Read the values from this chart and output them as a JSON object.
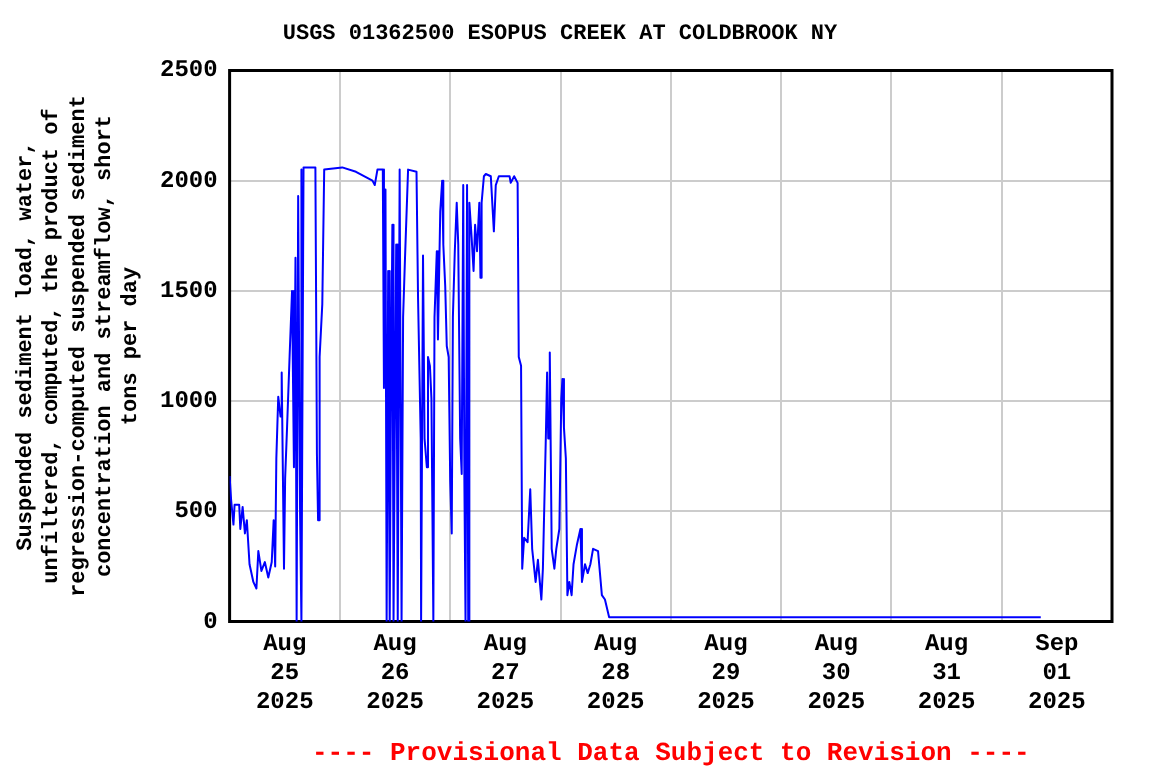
{
  "chart_data": {
    "type": "line",
    "title": "USGS 01362500 ESOPUS CREEK AT COLDBROOK NY",
    "ylabel": "Suspended sediment load, water, unfiltered, computed, the product of regression-computed suspended sediment concentration and streamflow, short tons per day",
    "annotations": [
      "---- Provisional Data Subject to Revision ----"
    ],
    "x": [
      "2025-08-25T00:00",
      "2025-08-25T00:20",
      "2025-08-25T00:50",
      "2025-08-25T01:05",
      "2025-08-25T02:05",
      "2025-08-25T02:20",
      "2025-08-25T02:50",
      "2025-08-25T03:20",
      "2025-08-25T03:45",
      "2025-08-25T04:20",
      "2025-08-25T05:10",
      "2025-08-25T05:50",
      "2025-08-25T06:15",
      "2025-08-25T06:55",
      "2025-08-25T07:40",
      "2025-08-25T08:25",
      "2025-08-25T09:10",
      "2025-08-25T09:35",
      "2025-08-25T09:55",
      "2025-08-25T10:10",
      "2025-08-25T10:35",
      "2025-08-25T11:05",
      "2025-08-25T11:20",
      "2025-08-25T11:50",
      "2025-08-25T12:05",
      "2025-08-25T12:30",
      "2025-08-25T13:05",
      "2025-08-25T13:35",
      "2025-08-25T14:00",
      "2025-08-25T14:20",
      "2025-08-25T14:35",
      "2025-08-25T14:55",
      "2025-08-25T15:20",
      "2025-08-25T15:30",
      "2025-08-25T15:45",
      "2025-08-25T16:05",
      "2025-08-25T18:40",
      "2025-08-25T19:00",
      "2025-08-25T19:15",
      "2025-08-25T19:35",
      "2025-08-25T20:10",
      "2025-08-25T20:35",
      "2025-08-26T00:30",
      "2025-08-26T03:30",
      "2025-08-26T07:05",
      "2025-08-26T07:35",
      "2025-08-26T08:10",
      "2025-08-26T09:20",
      "2025-08-26T09:35",
      "2025-08-26T09:55",
      "2025-08-26T10:10",
      "2025-08-26T10:30",
      "2025-08-26T10:50",
      "2025-08-26T11:05",
      "2025-08-26T11:25",
      "2025-08-26T11:40",
      "2025-08-26T11:55",
      "2025-08-26T12:15",
      "2025-08-26T12:35",
      "2025-08-26T13:00",
      "2025-08-26T13:25",
      "2025-08-26T13:45",
      "2025-08-26T14:10",
      "2025-08-26T14:50",
      "2025-08-26T16:40",
      "2025-08-26T17:00",
      "2025-08-26T17:35",
      "2025-08-26T17:40",
      "2025-08-26T18:05",
      "2025-08-26T18:25",
      "2025-08-26T18:55",
      "2025-08-26T19:10",
      "2025-08-26T19:35",
      "2025-08-26T19:55",
      "2025-08-26T20:20",
      "2025-08-26T20:35",
      "2025-08-26T21:05",
      "2025-08-26T21:20",
      "2025-08-26T21:50",
      "2025-08-26T22:15",
      "2025-08-26T22:30",
      "2025-08-26T22:55",
      "2025-08-26T23:15",
      "2025-08-26T23:40",
      "2025-08-27T00:00",
      "2025-08-27T00:20",
      "2025-08-27T00:35",
      "2025-08-27T01:00",
      "2025-08-27T01:25",
      "2025-08-27T01:45",
      "2025-08-27T02:10",
      "2025-08-27T02:30",
      "2025-08-27T02:50",
      "2025-08-27T03:05",
      "2025-08-27T03:20",
      "2025-08-27T03:40",
      "2025-08-27T03:55",
      "2025-08-27T04:10",
      "2025-08-27T04:40",
      "2025-08-27T05:05",
      "2025-08-27T05:25",
      "2025-08-27T05:50",
      "2025-08-27T06:20",
      "2025-08-27T06:35",
      "2025-08-27T06:50",
      "2025-08-27T07:20",
      "2025-08-27T07:45",
      "2025-08-27T08:50",
      "2025-08-27T09:30",
      "2025-08-27T09:55",
      "2025-08-27T10:35",
      "2025-08-27T12:55",
      "2025-08-27T13:10",
      "2025-08-27T13:55",
      "2025-08-27T14:40",
      "2025-08-27T14:55",
      "2025-08-27T15:25",
      "2025-08-27T15:40",
      "2025-08-27T16:05",
      "2025-08-27T16:50",
      "2025-08-27T17:25",
      "2025-08-27T17:50",
      "2025-08-27T18:35",
      "2025-08-27T19:05",
      "2025-08-27T19:50",
      "2025-08-27T20:10",
      "2025-08-27T20:50",
      "2025-08-27T21:05",
      "2025-08-27T21:20",
      "2025-08-27T21:40",
      "2025-08-27T22:05",
      "2025-08-27T22:40",
      "2025-08-27T23:05",
      "2025-08-27T23:45",
      "2025-08-28T00:10",
      "2025-08-28T00:25",
      "2025-08-28T00:45",
      "2025-08-28T01:10",
      "2025-08-28T01:30",
      "2025-08-28T01:55",
      "2025-08-28T02:25",
      "2025-08-28T02:50",
      "2025-08-28T03:35",
      "2025-08-28T04:20",
      "2025-08-28T04:40",
      "2025-08-28T05:20",
      "2025-08-28T05:55",
      "2025-08-28T06:30",
      "2025-08-28T07:05",
      "2025-08-28T08:10",
      "2025-08-28T09:00",
      "2025-08-28T09:40",
      "2025-08-28T10:35",
      "2025-09-01T08:30"
    ],
    "series": [
      {
        "color": "#0000ff",
        "values": [
          660,
          550,
          440,
          530,
          530,
          420,
          520,
          400,
          460,
          260,
          180,
          150,
          320,
          230,
          270,
          200,
          270,
          460,
          250,
          740,
          1020,
          930,
          1130,
          240,
          650,
          880,
          1220,
          1500,
          700,
          1650,
          0,
          1930,
          490,
          2050,
          0,
          2060,
          2060,
          760,
          460,
          1200,
          1440,
          2050,
          2060,
          2040,
          2000,
          1980,
          2050,
          2050,
          1060,
          1960,
          0,
          1590,
          0,
          920,
          1800,
          0,
          790,
          1710,
          0,
          2050,
          0,
          1380,
          1650,
          2050,
          2040,
          1470,
          830,
          0,
          1660,
          830,
          700,
          1200,
          1160,
          1010,
          0,
          1380,
          1680,
          1280,
          1860,
          2000,
          1710,
          1520,
          1250,
          1200,
          640,
          400,
          1380,
          1680,
          1900,
          1710,
          830,
          670,
          1980,
          640,
          0,
          1980,
          0,
          1900,
          1740,
          1590,
          1800,
          1680,
          1900,
          1560,
          1900,
          2020,
          2030,
          2020,
          1770,
          1980,
          2020,
          2020,
          1990,
          2020,
          1990,
          1200,
          1160,
          240,
          380,
          360,
          600,
          330,
          180,
          280,
          100,
          240,
          860,
          1130,
          830,
          1220,
          330,
          240,
          330,
          420,
          1010,
          1100,
          880,
          740,
          120,
          180,
          120,
          260,
          350,
          420,
          180,
          260,
          220,
          260,
          330,
          320,
          120,
          100,
          20,
          20
        ]
      }
    ],
    "xlim": [
      "2025-08-25T00:00",
      "2025-09-02T00:00"
    ],
    "xticks": [
      {
        "value": "2025-08-25T12:00",
        "label": "Aug 25 2025"
      },
      {
        "value": "2025-08-26T12:00",
        "label": "Aug 26 2025"
      },
      {
        "value": "2025-08-27T12:00",
        "label": "Aug 27 2025"
      },
      {
        "value": "2025-08-28T12:00",
        "label": "Aug 28 2025"
      },
      {
        "value": "2025-08-29T12:00",
        "label": "Aug 29 2025"
      },
      {
        "value": "2025-08-30T12:00",
        "label": "Aug 30 2025"
      },
      {
        "value": "2025-08-31T12:00",
        "label": "Aug 31 2025"
      },
      {
        "value": "2025-09-01T12:00",
        "label": "Sep 01 2025"
      },
      {
        "value": "2025-08-26T00:00",
        "label": null
      },
      {
        "value": "2025-08-27T00:00",
        "label": null
      },
      {
        "value": "2025-08-28T00:00",
        "label": null
      },
      {
        "value": "2025-08-29T00:00",
        "label": null
      },
      {
        "value": "2025-08-30T00:00",
        "label": null
      },
      {
        "value": "2025-08-31T00:00",
        "label": null
      },
      {
        "value": "2025-09-01T00:00",
        "label": null
      }
    ],
    "ylim": [
      0,
      2500
    ],
    "yticks": [
      0,
      500,
      1000,
      1500,
      2000,
      2500
    ],
    "grid": true,
    "marker": "none",
    "line_style": "solid",
    "legend": false
  }
}
